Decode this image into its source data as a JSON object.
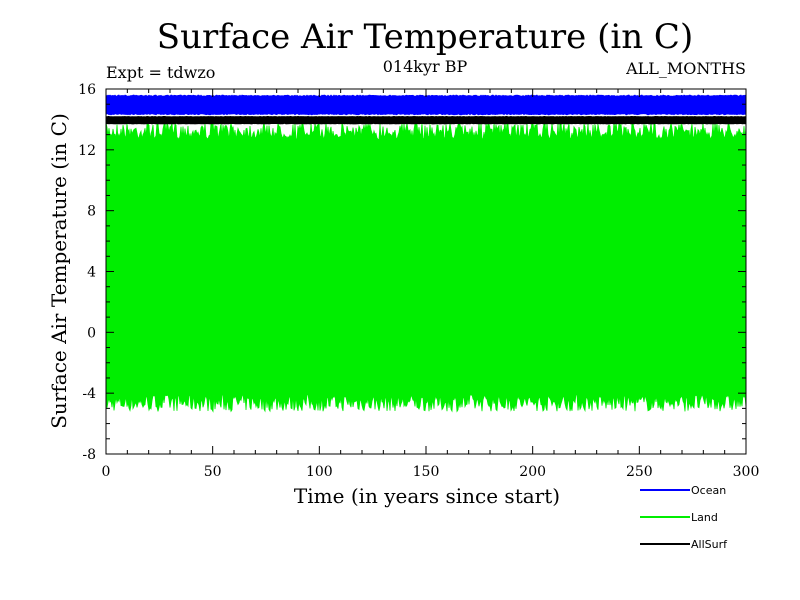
{
  "chart_data": {
    "type": "area",
    "title": "Surface Air Temperature (in C)",
    "subtitle_left": "Expt = tdwzo",
    "subtitle_center": "014kyr BP",
    "subtitle_right": "ALL_MONTHS",
    "xlabel": "Time (in years since start)",
    "ylabel": "Surface Air Temperature (in C)",
    "xlim": [
      0,
      300
    ],
    "ylim": [
      -8,
      16
    ],
    "xticks": [
      0,
      50,
      100,
      150,
      200,
      250,
      300
    ],
    "yticks": [
      -8,
      -4,
      0,
      4,
      8,
      12,
      16
    ],
    "grid": false,
    "legend_position": "bottom-right",
    "series": [
      {
        "name": "Ocean",
        "color": "#0000ff",
        "min": 14.3,
        "max": 15.6
      },
      {
        "name": "Land",
        "color": "#00ee00",
        "min": -5.2,
        "max": 13.8
      },
      {
        "name": "AllSurf",
        "color": "#000000",
        "min": 13.7,
        "max": 14.2
      }
    ]
  }
}
